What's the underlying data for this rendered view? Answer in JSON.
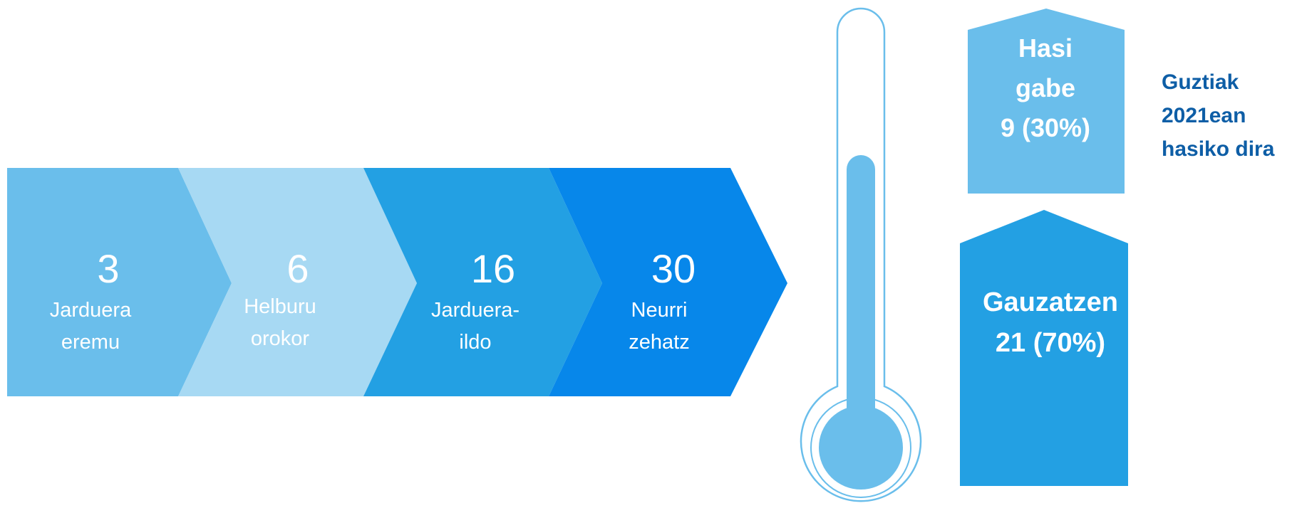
{
  "steps": [
    {
      "value": "3",
      "line1": "Jarduera",
      "line2": "eremu",
      "color": "#6ABEEB",
      "text_color": "#ffffff"
    },
    {
      "value": "6",
      "line1": "Helburu",
      "line2": "orokor",
      "color": "#A7D9F3",
      "text_color": "#ffffff"
    },
    {
      "value": "16",
      "line1": "Jarduera-",
      "line2": "ildo",
      "color": "#23A0E3",
      "text_color": "#ffffff"
    },
    {
      "value": "30",
      "line1": "Neurri",
      "line2": "zehatz",
      "color": "#0787EA",
      "text_color": "#ffffff"
    }
  ],
  "status": {
    "not_started": {
      "line1": "Hasi",
      "line2": "gabe",
      "count_text": "9 (30%)",
      "count": 9,
      "percent": 30,
      "color": "#6ABEEB"
    },
    "in_progress": {
      "line1": "Gauzatzen",
      "count_text": "21 (70%)",
      "count": 21,
      "percent": 70,
      "color": "#23A0E3"
    }
  },
  "note": {
    "line1": "Guztiak",
    "line2": "2021ean",
    "line3": "hasiko dira",
    "color": "#0E5EA6"
  },
  "thermometer": {
    "color": "#6ABEEB",
    "outline_color": "#6ABEEB"
  }
}
